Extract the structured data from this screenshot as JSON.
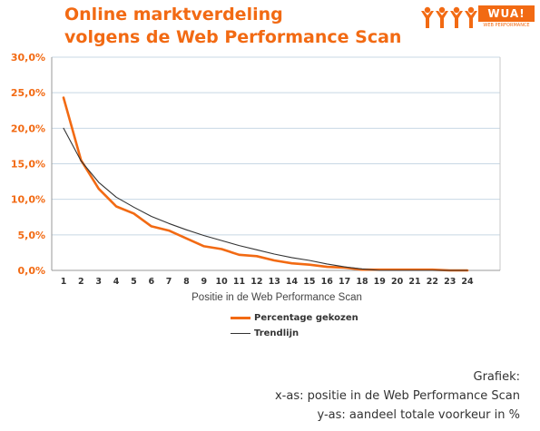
{
  "title_lines": [
    "Online marktverdeling",
    "volgens de Web Performance Scan"
  ],
  "logo": {
    "text": "WUA!",
    "tagline": "WEB PERFORMANCE",
    "icon": "people-icon"
  },
  "colors": {
    "accent": "#f26a13",
    "trend": "#333333",
    "grid": "#c8d8e4"
  },
  "legend": {
    "series1": "Percentage gekozen",
    "series2": "Trendlijn"
  },
  "note": {
    "heading": "Grafiek:",
    "xline": "x-as: positie in de Web Performance Scan",
    "yline": "y-as: aandeel totale voorkeur in %"
  },
  "chart_data": {
    "type": "line",
    "title": "",
    "xlabel": "Positie in de Web Performance Scan",
    "ylabel": "",
    "x": [
      1,
      2,
      3,
      4,
      5,
      6,
      7,
      8,
      9,
      10,
      11,
      12,
      13,
      14,
      15,
      16,
      17,
      18,
      19,
      20,
      21,
      22,
      23,
      24
    ],
    "ylim": [
      0,
      30
    ],
    "yticks": [
      "0,0%",
      "5,0%",
      "10,0%",
      "15,0%",
      "20,0%",
      "25,0%",
      "30,0%"
    ],
    "grid": true,
    "legend_position": "bottom",
    "series": [
      {
        "name": "Percentage gekozen",
        "color": "#f26a13",
        "values": [
          24.3,
          15.5,
          11.5,
          9.0,
          8.0,
          6.2,
          5.6,
          4.5,
          3.4,
          3.0,
          2.2,
          2.0,
          1.4,
          1.0,
          0.8,
          0.5,
          0.4,
          0.1,
          0.1,
          0.1,
          0.1,
          0.1,
          0.0,
          0.0
        ]
      },
      {
        "name": "Trendlijn",
        "color": "#333333",
        "values": [
          20.0,
          15.4,
          12.4,
          10.3,
          8.9,
          7.6,
          6.6,
          5.7,
          4.9,
          4.2,
          3.5,
          2.9,
          2.3,
          1.8,
          1.4,
          0.9,
          0.5,
          0.2,
          0.0,
          0.0,
          0.0,
          0.0,
          0.0,
          0.0
        ]
      }
    ]
  }
}
